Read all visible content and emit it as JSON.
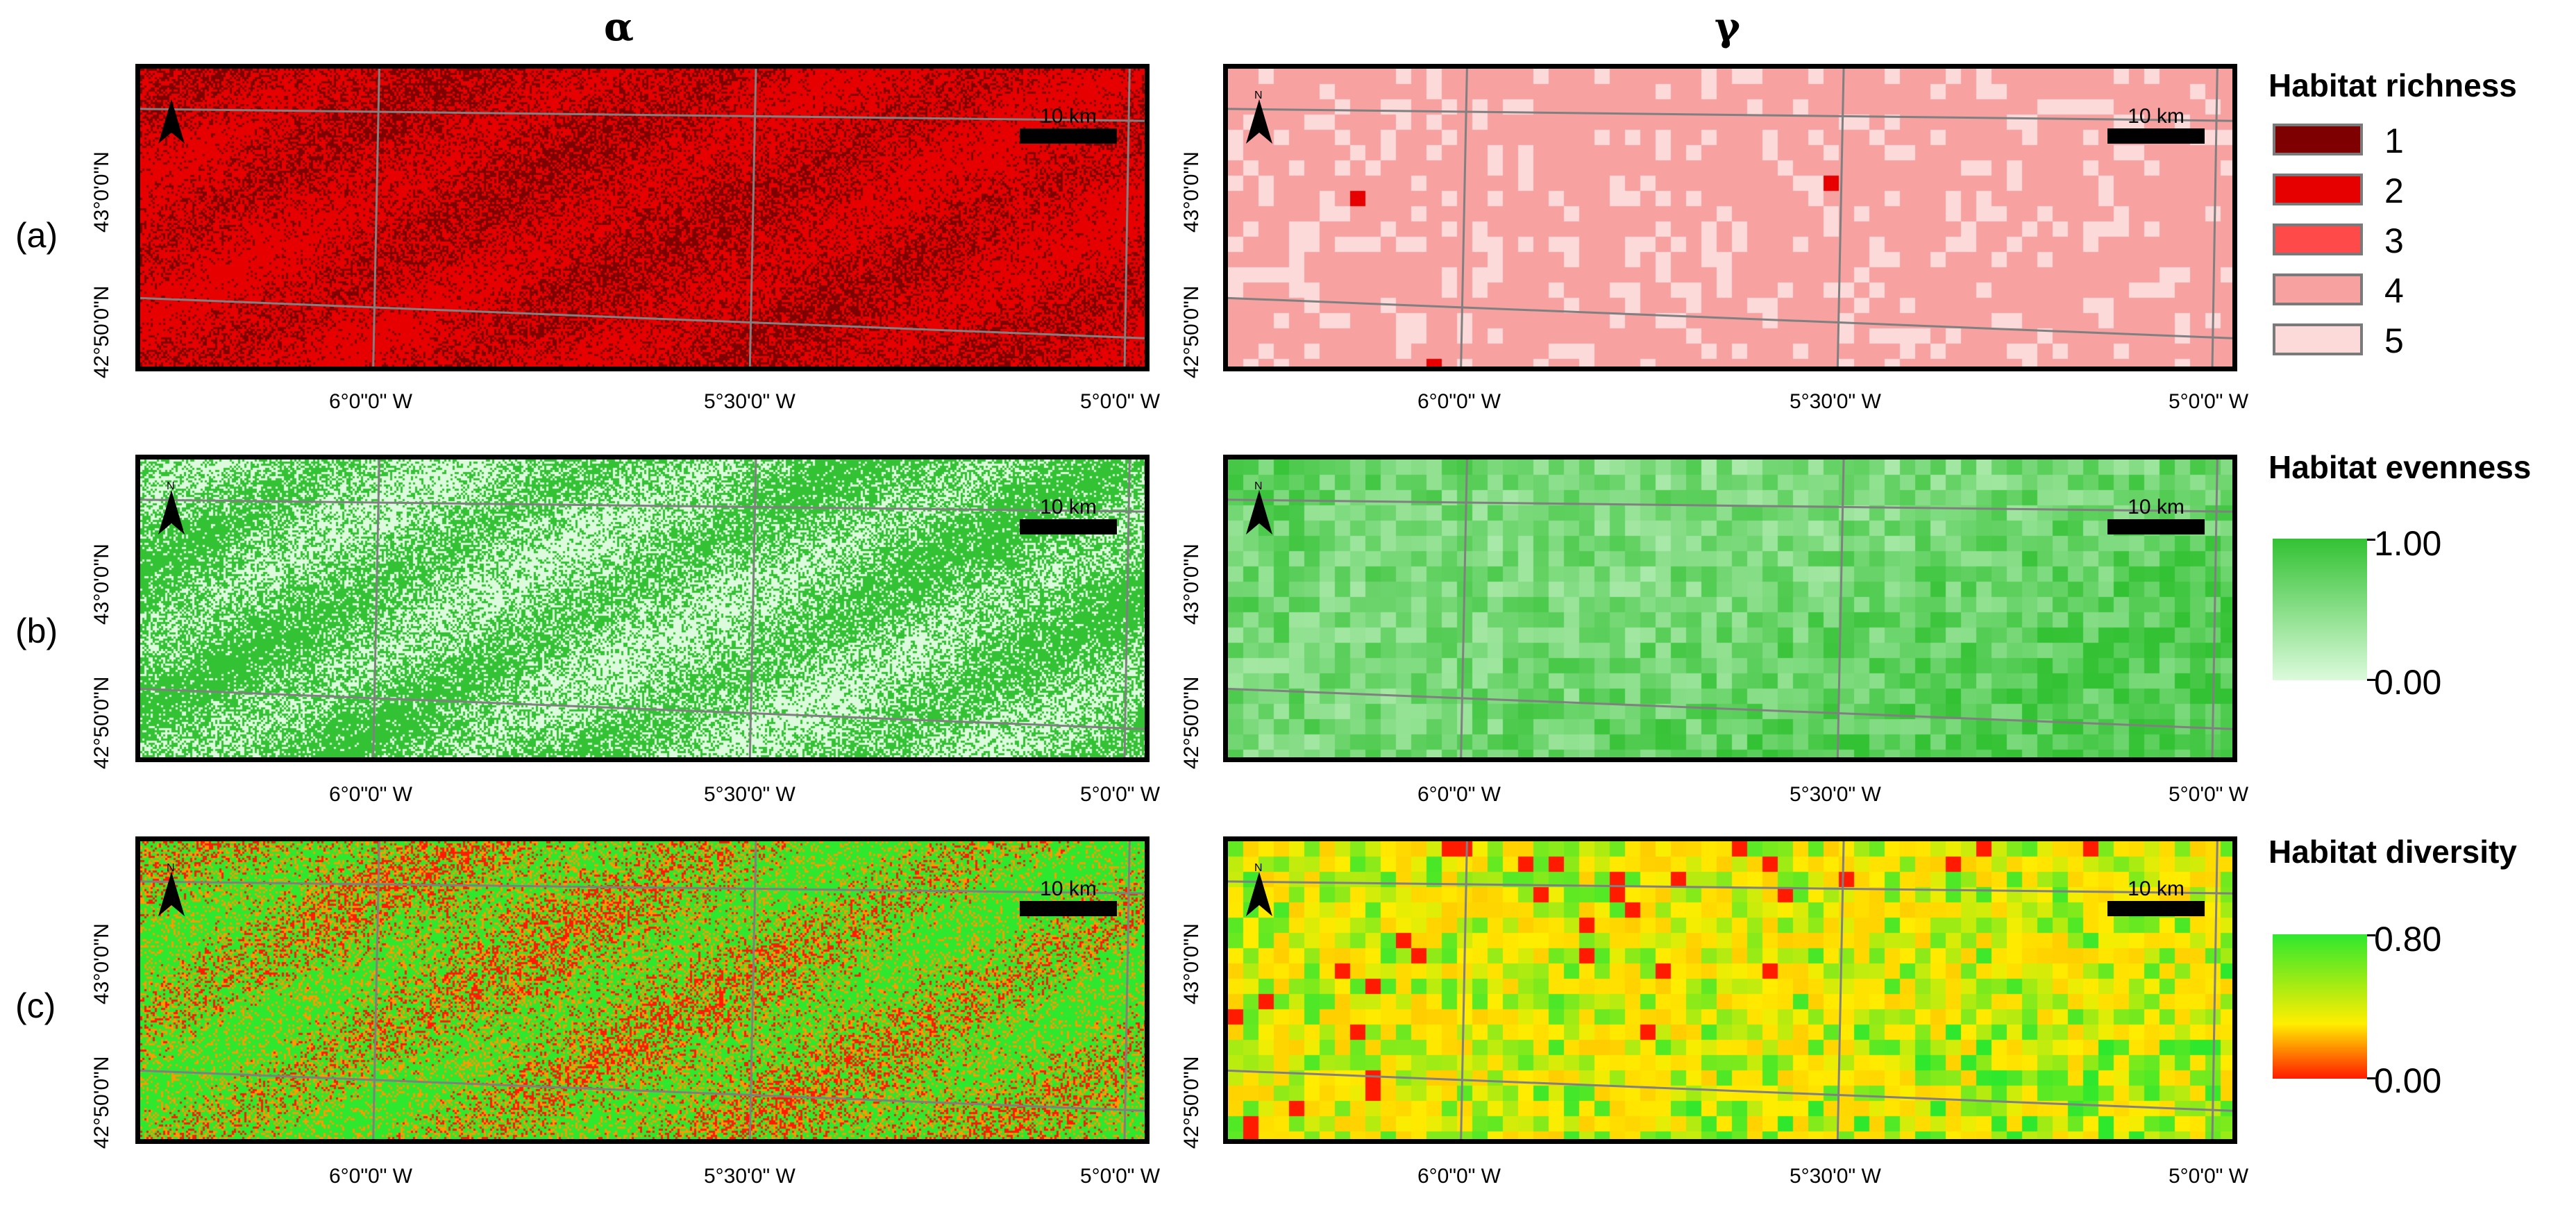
{
  "columns": {
    "alpha": "α",
    "gamma": "γ"
  },
  "rows": [
    {
      "label": "(a)",
      "legend_title": "Habitat richness"
    },
    {
      "label": "(b)",
      "legend_title": "Habitat evenness"
    },
    {
      "label": "(c)",
      "legend_title": "Habitat diversity"
    }
  ],
  "axis": {
    "x_ticks": [
      "6°0\"0\" W",
      "5°30'0\" W",
      "5°0'0\" W"
    ],
    "y_ticks": [
      "43°0'0\"N",
      "42°50'0\"N"
    ]
  },
  "scale_bar": "10 km",
  "north_label": "N",
  "legend": {
    "richness": {
      "classes": [
        {
          "label": "1",
          "color": "#7f0000"
        },
        {
          "label": "2",
          "color": "#e60000"
        },
        {
          "label": "3",
          "color": "#ff4a4a"
        },
        {
          "label": "4",
          "color": "#f7a1a1"
        },
        {
          "label": "5",
          "color": "#fcdada"
        }
      ]
    },
    "evenness": {
      "max": "1.00",
      "min": "0.00",
      "color_high": "#33c233",
      "color_low": "#dcfadc"
    },
    "diversity": {
      "max": "0.80",
      "min": "0.00",
      "color_high": "#2ee82e",
      "color_mid": "#ffee00",
      "color_low": "#ff1a00"
    }
  }
}
